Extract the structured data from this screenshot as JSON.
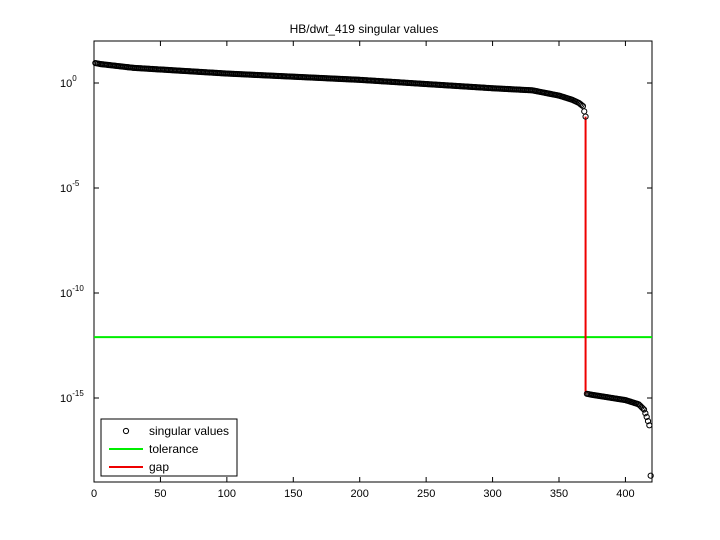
{
  "chart_data": {
    "type": "scatter",
    "title": "HB/dwt_419 singular values",
    "xlabel": "",
    "ylabel": "",
    "x_scale": "linear",
    "y_scale": "log",
    "xlim": [
      0,
      420
    ],
    "ylim_exponents": [
      -19,
      2
    ],
    "grid": false,
    "legend_placement": "bottom-left",
    "x_ticks": [
      {
        "value": 0,
        "label": "0"
      },
      {
        "value": 50,
        "label": "50"
      },
      {
        "value": 100,
        "label": "100"
      },
      {
        "value": 150,
        "label": "150"
      },
      {
        "value": 200,
        "label": "200"
      },
      {
        "value": 250,
        "label": "250"
      },
      {
        "value": 300,
        "label": "300"
      },
      {
        "value": 350,
        "label": "350"
      },
      {
        "value": 400,
        "label": "400"
      }
    ],
    "y_ticks": [
      {
        "exponent": 0,
        "base": "10",
        "exp_label": "0"
      },
      {
        "exponent": -5,
        "base": "10",
        "exp_label": "-5"
      },
      {
        "exponent": -10,
        "base": "10",
        "exp_label": "-10"
      },
      {
        "exponent": -15,
        "base": "10",
        "exp_label": "-15"
      }
    ],
    "series": [
      {
        "name": "singular values",
        "style": "marker",
        "marker": "circle",
        "color": "#000000",
        "segments": [
          {
            "index_range": [
              1,
              370
            ],
            "log10_keypoints": [
              [
                1,
                0.95
              ],
              [
                5,
                0.9
              ],
              [
                30,
                0.72
              ],
              [
                100,
                0.45
              ],
              [
                200,
                0.15
              ],
              [
                250,
                -0.05
              ],
              [
                300,
                -0.25
              ],
              [
                330,
                -0.35
              ],
              [
                350,
                -0.6
              ],
              [
                360,
                -0.8
              ],
              [
                365,
                -0.95
              ],
              [
                368,
                -1.1
              ],
              [
                370,
                -1.6
              ]
            ]
          },
          {
            "index_range": [
              371,
              419
            ],
            "log10_keypoints": [
              [
                371,
                -14.8
              ],
              [
                375,
                -14.85
              ],
              [
                385,
                -14.95
              ],
              [
                400,
                -15.1
              ],
              [
                410,
                -15.3
              ],
              [
                414,
                -15.55
              ],
              [
                416,
                -15.9
              ],
              [
                418,
                -16.3
              ],
              [
                419,
                -18.7
              ]
            ]
          }
        ]
      },
      {
        "name": "tolerance",
        "style": "line",
        "color": "#00ee00",
        "log10_value": -12.1
      },
      {
        "name": "gap",
        "style": "line",
        "color": "#ee0000",
        "x": 370,
        "log10_range": [
          -14.8,
          -1.6
        ]
      }
    ]
  }
}
